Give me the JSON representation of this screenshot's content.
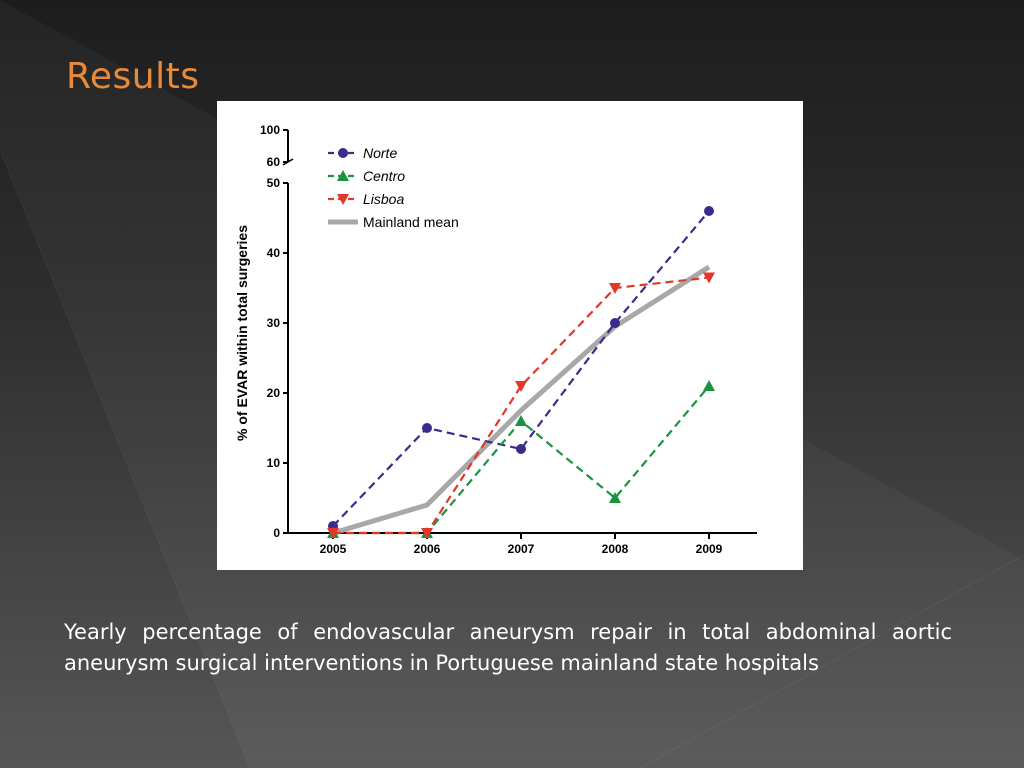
{
  "slide": {
    "title": "Results",
    "caption": "Yearly percentage of endovascular aneurysm repair in total abdominal aortic aneurysm surgical interventions in Portuguese mainland state hospitals",
    "title_color": "#e88a3c"
  },
  "chart_data": {
    "type": "line",
    "ylabel": "% of EVAR within total surgeries",
    "xlabel": "",
    "x": [
      "2005",
      "2006",
      "2007",
      "2008",
      "2009"
    ],
    "yticks": [
      "0",
      "10",
      "20",
      "30",
      "40",
      "50",
      "60",
      "100"
    ],
    "y_axis_break": [
      50,
      60,
      100
    ],
    "ylim": [
      0,
      100
    ],
    "legend_position": "top-left",
    "series": [
      {
        "name": "Norte",
        "style": "dashed",
        "marker": "circle",
        "color": "#3a2c8c",
        "italic": true,
        "values": [
          1,
          15,
          12,
          30,
          46
        ]
      },
      {
        "name": "Centro",
        "style": "dashed",
        "marker": "triangle-up",
        "color": "#1a9440",
        "italic": true,
        "values": [
          0,
          0,
          16,
          5,
          21
        ]
      },
      {
        "name": "Lisboa",
        "style": "dashed",
        "marker": "triangle-down",
        "color": "#e2382a",
        "italic": true,
        "values": [
          0,
          0,
          21,
          35,
          36.5
        ]
      },
      {
        "name": "Mainland mean",
        "style": "solid",
        "marker": "none",
        "color": "#a8a8a8",
        "italic": false,
        "values": [
          0,
          4,
          17.5,
          29.5,
          38
        ]
      }
    ]
  }
}
